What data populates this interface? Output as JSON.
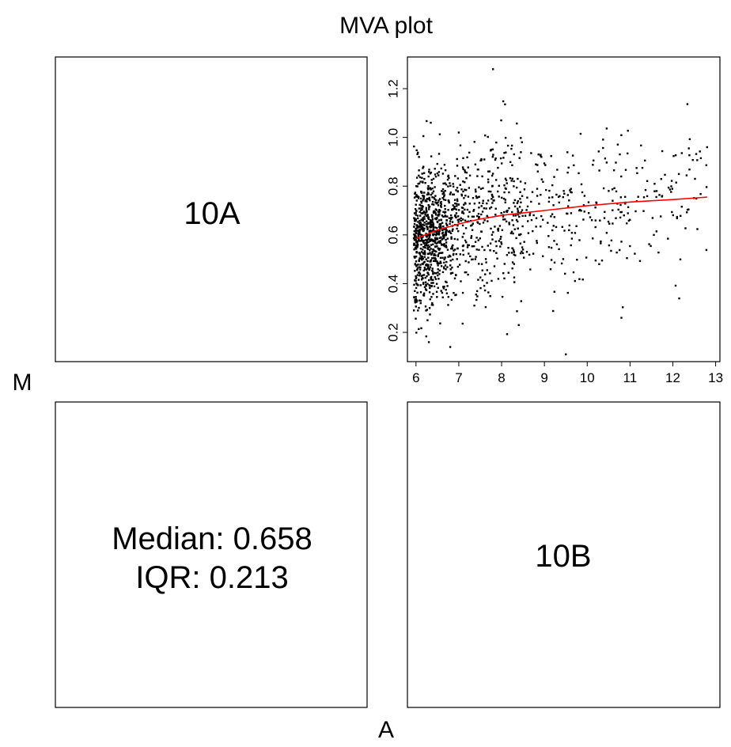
{
  "chart_data": {
    "type": "scatter",
    "title": "MVA plot",
    "xlabel": "A",
    "ylabel": "M",
    "panels": {
      "top_left_label": "10A",
      "bottom_right_label": "10B",
      "bottom_left": {
        "median_text": "Median: 0.658",
        "iqr_text": "IQR: 0.213"
      }
    },
    "scatter_panel": {
      "xlim": [
        5.8,
        13.1
      ],
      "ylim": [
        0.08,
        1.33
      ],
      "x_ticks": [
        "6",
        "7",
        "8",
        "9",
        "10",
        "11",
        "12",
        "13"
      ],
      "y_ticks": [
        "0.2",
        "0.4",
        "0.6",
        "0.8",
        "1.0",
        "1.2"
      ],
      "point_color": "#000000",
      "loess_color": "#ff0000",
      "loess": {
        "x": [
          6.0,
          6.5,
          7.0,
          7.5,
          8.0,
          8.5,
          9.0,
          10.0,
          11.0,
          12.0,
          12.8
        ],
        "y": [
          0.585,
          0.62,
          0.645,
          0.665,
          0.68,
          0.69,
          0.7,
          0.72,
          0.735,
          0.745,
          0.755
        ]
      },
      "outliers": {
        "x": [
          7.8,
          9.5,
          10.8,
          6.3,
          6.8,
          12.8,
          8.4,
          7.0
        ],
        "y": [
          1.28,
          0.11,
          0.26,
          0.16,
          0.14,
          0.96,
          0.23,
          1.02
        ]
      },
      "approx_point_count": 1500
    }
  }
}
